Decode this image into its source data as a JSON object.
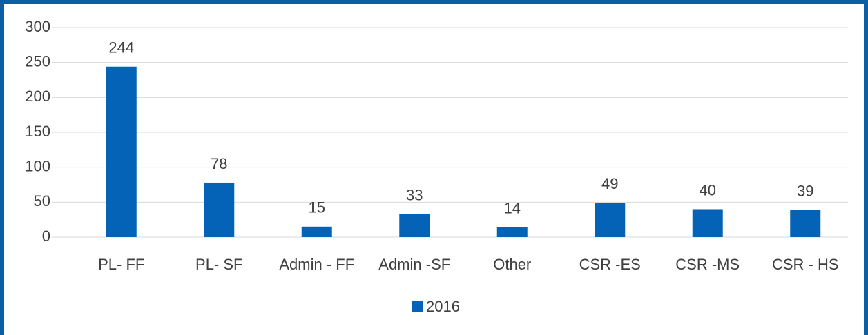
{
  "chart_data": {
    "type": "bar",
    "categories": [
      "PL- FF",
      "PL- SF",
      "Admin - FF",
      "Admin -SF",
      "Other",
      "CSR -ES",
      "CSR -MS",
      "CSR - HS"
    ],
    "series": [
      {
        "name": "2016",
        "color": "#0563b7",
        "values": [
          244,
          78,
          15,
          33,
          14,
          49,
          40,
          39
        ]
      }
    ],
    "ylim": [
      0,
      300
    ],
    "yticks": [
      0,
      50,
      100,
      150,
      200,
      250,
      300
    ],
    "grid": true,
    "legend": "bottom",
    "data_labels": true
  }
}
